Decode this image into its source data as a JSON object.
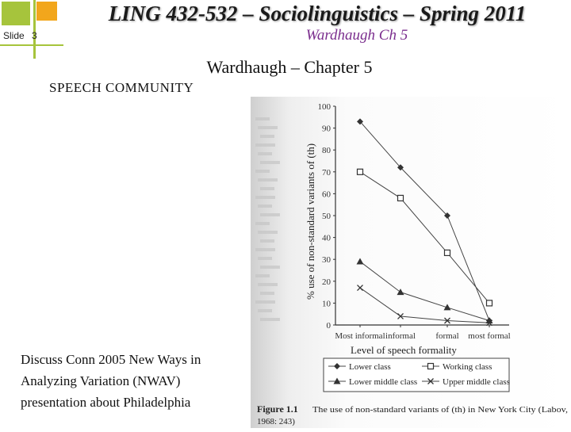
{
  "header": {
    "title": "LING 432-532 – Sociolinguistics – Spring 2011",
    "subtitle": "Wardhaugh Ch 5",
    "slide_label": "Slide",
    "slide_number": "3"
  },
  "content": {
    "heading": "Wardhaugh – Chapter 5",
    "section": "SPEECH COMMUNITY",
    "body_lines": [
      "Discuss Conn 2005 New Ways in",
      "Analyzing Variation (NWAV)",
      "presentation about Philadelphia"
    ]
  },
  "colors": {
    "accent_green": "#a6c43c",
    "accent_orange": "#f2a61c",
    "subtitle_purple": "#7b2e8e"
  },
  "figure": {
    "caption_label": "Figure 1.1",
    "caption_line1": "The use of non-standard variants of (th) in New York City (Labov,",
    "caption_line2": "1968: 243)"
  },
  "chart_data": {
    "type": "line",
    "title": "",
    "xlabel": "Level of speech formality",
    "ylabel": "% use of non-standard variants of (th)",
    "categories": [
      "Most informal",
      "informal",
      "formal",
      "most formal"
    ],
    "ylim": [
      0,
      100
    ],
    "yticks": [
      0,
      10,
      20,
      30,
      40,
      50,
      60,
      70,
      80,
      90,
      100
    ],
    "grid": false,
    "legend_position": "bottom",
    "series": [
      {
        "name": "Lower class",
        "marker": "diamond",
        "values": [
          93,
          72,
          50,
          2
        ]
      },
      {
        "name": "Working class",
        "marker": "square",
        "values": [
          70,
          58,
          33,
          10
        ]
      },
      {
        "name": "Lower middle class",
        "marker": "triangle",
        "values": [
          29,
          15,
          8,
          2
        ]
      },
      {
        "name": "Upper middle class",
        "marker": "x",
        "values": [
          17,
          4,
          2,
          1
        ]
      }
    ]
  }
}
